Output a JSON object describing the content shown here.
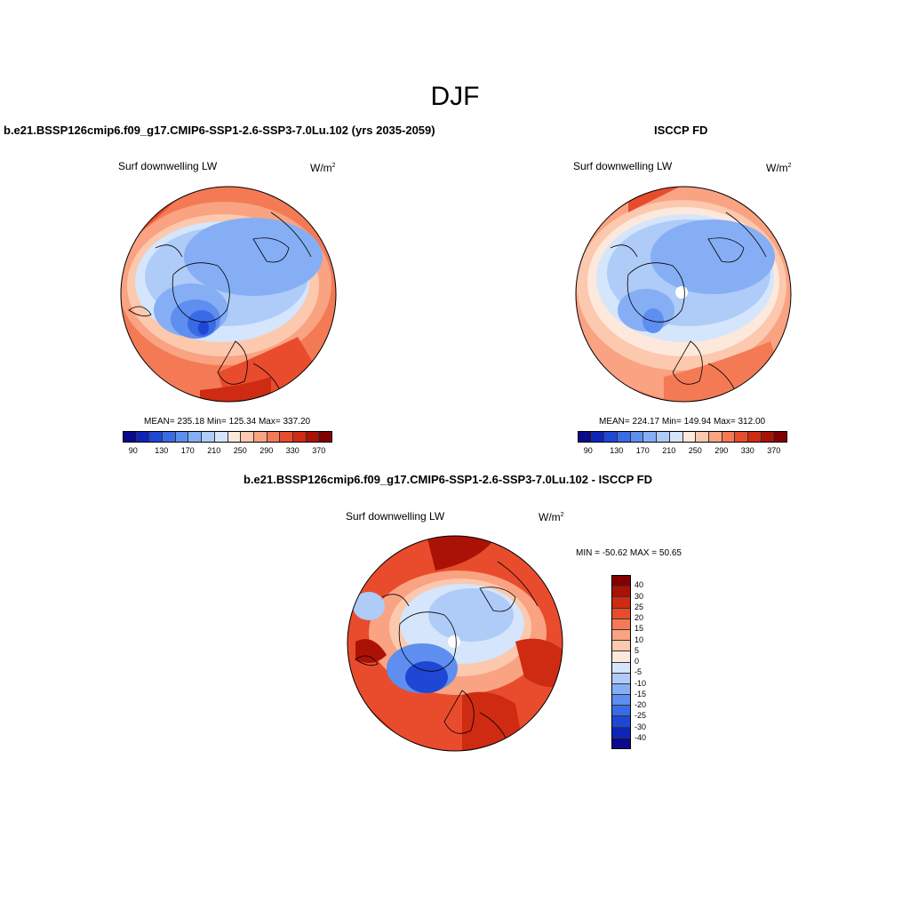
{
  "main_title": "DJF",
  "panels": [
    {
      "title": "b.e21.BSSP126cmip6.f09_g17.CMIP6-SSP1-2.6-SSP3-7.0Lu.102 (yrs 2035-2059)",
      "variable": "Surf downwelling LW",
      "units_base": "W/m",
      "units_exp": "2",
      "stats": "MEAN= 235.18  Min= 125.34  Max= 337.20"
    },
    {
      "title": "ISCCP FD",
      "variable": "Surf downwelling LW",
      "units_base": "W/m",
      "units_exp": "2",
      "stats": "MEAN= 224.17  Min= 149.94  Max= 312.00"
    },
    {
      "title": "b.e21.BSSP126cmip6.f09_g17.CMIP6-SSP1-2.6-SSP3-7.0Lu.102 - ISCCP FD",
      "variable": "Surf downwelling LW",
      "units_base": "W/m",
      "units_exp": "2",
      "stats": "MIN = -50.62 MAX =  50.65"
    }
  ],
  "abs_colorbar": {
    "ticks": [
      "90",
      "130",
      "170",
      "210",
      "250",
      "290",
      "330",
      "370"
    ],
    "colors": [
      "#0a0a8c",
      "#0d25b8",
      "#1f47d6",
      "#3a6be6",
      "#5e8ef0",
      "#86aef5",
      "#afcbf8",
      "#d5e5fb",
      "#fde8dc",
      "#fcc8ae",
      "#f9a382",
      "#f47a56",
      "#e84c2c",
      "#cf2a12",
      "#ab1206",
      "#830000"
    ]
  },
  "diff_colorbar": {
    "ticks": [
      "40",
      "30",
      "25",
      "20",
      "15",
      "10",
      "5",
      "0",
      "-5",
      "-10",
      "-15",
      "-20",
      "-25",
      "-30",
      "-40"
    ],
    "colors": [
      "#830000",
      "#ab1206",
      "#cf2a12",
      "#e84c2c",
      "#f47a56",
      "#f9a382",
      "#fcc8ae",
      "#fde8dc",
      "#d5e5fb",
      "#afcbf8",
      "#86aef5",
      "#5e8ef0",
      "#3a6be6",
      "#1f47d6",
      "#0d25b8",
      "#0a0a8c"
    ]
  }
}
